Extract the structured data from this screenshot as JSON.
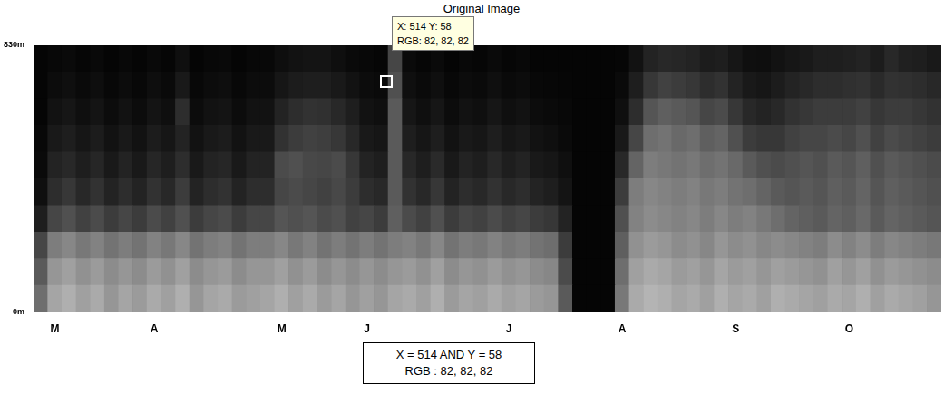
{
  "chart_data": {
    "type": "heatmap",
    "title": "Original Image",
    "categories": [
      null,
      "M",
      null,
      null,
      null,
      null,
      null,
      null,
      "A",
      null,
      null,
      null,
      null,
      null,
      null,
      null,
      null,
      "M",
      null,
      null,
      null,
      null,
      null,
      "J",
      null,
      null,
      null,
      null,
      null,
      null,
      null,
      null,
      null,
      "J",
      null,
      null,
      null,
      null,
      null,
      null,
      null,
      "A",
      null,
      null,
      null,
      null,
      null,
      null,
      null,
      "S",
      null,
      null,
      null,
      null,
      null,
      null,
      null,
      "O",
      null,
      null,
      null,
      null,
      null,
      null
    ],
    "ylim": [
      0,
      830
    ],
    "yticks": [
      {
        "value": 0,
        "label": "0m"
      },
      {
        "value": 830,
        "label": "830m"
      }
    ],
    "grid": false,
    "legend": false,
    "cells": [
      [
        110,
        165,
        175,
        160,
        170,
        150,
        165,
        155,
        170,
        160,
        175,
        150,
        165,
        170,
        155,
        160,
        165,
        175,
        160,
        170,
        155,
        165,
        150,
        160,
        150,
        165,
        170,
        160,
        175,
        155,
        165,
        160,
        170,
        160,
        165,
        155,
        150,
        90,
        5,
        5,
        5,
        120,
        170,
        180,
        175,
        165,
        170,
        160,
        175,
        165,
        170,
        160,
        175,
        170,
        165,
        160,
        170,
        165,
        175,
        160,
        170,
        165,
        160,
        150
      ],
      [
        90,
        150,
        160,
        145,
        155,
        140,
        150,
        140,
        155,
        145,
        160,
        140,
        150,
        155,
        140,
        150,
        150,
        160,
        145,
        155,
        140,
        150,
        140,
        150,
        140,
        150,
        155,
        145,
        160,
        140,
        150,
        145,
        155,
        145,
        150,
        140,
        135,
        75,
        5,
        5,
        5,
        110,
        160,
        170,
        165,
        155,
        160,
        150,
        165,
        155,
        160,
        150,
        160,
        155,
        150,
        145,
        160,
        150,
        160,
        145,
        155,
        150,
        145,
        140
      ],
      [
        70,
        125,
        135,
        120,
        130,
        115,
        125,
        115,
        130,
        120,
        135,
        115,
        125,
        130,
        115,
        125,
        125,
        135,
        120,
        130,
        115,
        125,
        115,
        125,
        115,
        125,
        130,
        120,
        135,
        115,
        125,
        120,
        130,
        120,
        125,
        115,
        110,
        60,
        5,
        5,
        5,
        95,
        145,
        155,
        150,
        140,
        145,
        135,
        150,
        140,
        145,
        135,
        140,
        135,
        130,
        125,
        140,
        130,
        140,
        125,
        135,
        130,
        125,
        120
      ],
      [
        30,
        70,
        80,
        65,
        75,
        60,
        70,
        60,
        75,
        65,
        80,
        60,
        70,
        75,
        60,
        70,
        70,
        85,
        80,
        85,
        75,
        80,
        65,
        70,
        60,
        95,
        75,
        65,
        80,
        60,
        70,
        65,
        75,
        65,
        70,
        60,
        55,
        35,
        5,
        5,
        5,
        80,
        130,
        140,
        135,
        130,
        135,
        125,
        135,
        125,
        130,
        120,
        110,
        100,
        95,
        90,
        100,
        95,
        105,
        90,
        100,
        95,
        90,
        85
      ],
      [
        15,
        45,
        55,
        40,
        50,
        35,
        45,
        35,
        50,
        40,
        60,
        35,
        45,
        50,
        35,
        45,
        45,
        70,
        75,
        70,
        65,
        72,
        60,
        45,
        40,
        90,
        50,
        40,
        55,
        35,
        45,
        40,
        50,
        40,
        45,
        35,
        30,
        20,
        5,
        5,
        5,
        60,
        125,
        135,
        130,
        125,
        130,
        120,
        125,
        115,
        110,
        100,
        90,
        85,
        90,
        85,
        95,
        90,
        100,
        85,
        95,
        90,
        85,
        80
      ],
      [
        10,
        35,
        40,
        30,
        38,
        25,
        35,
        25,
        38,
        30,
        45,
        25,
        35,
        38,
        25,
        35,
        35,
        75,
        80,
        72,
        70,
        75,
        55,
        35,
        30,
        90,
        40,
        30,
        42,
        25,
        35,
        30,
        40,
        30,
        35,
        25,
        22,
        15,
        5,
        5,
        5,
        40,
        100,
        125,
        120,
        115,
        120,
        110,
        115,
        105,
        90,
        80,
        75,
        80,
        85,
        80,
        90,
        85,
        95,
        80,
        90,
        85,
        80,
        75
      ],
      [
        8,
        25,
        30,
        22,
        28,
        18,
        25,
        18,
        28,
        22,
        35,
        18,
        25,
        28,
        18,
        25,
        25,
        50,
        60,
        65,
        62,
        55,
        40,
        25,
        22,
        90,
        30,
        22,
        30,
        18,
        25,
        22,
        30,
        22,
        25,
        18,
        15,
        10,
        5,
        5,
        5,
        25,
        70,
        110,
        115,
        105,
        110,
        95,
        100,
        80,
        60,
        55,
        55,
        65,
        70,
        70,
        75,
        70,
        80,
        65,
        75,
        70,
        65,
        60
      ],
      [
        5,
        18,
        22,
        15,
        20,
        12,
        18,
        12,
        20,
        15,
        45,
        12,
        18,
        20,
        12,
        18,
        18,
        35,
        45,
        50,
        48,
        40,
        30,
        18,
        15,
        90,
        22,
        15,
        22,
        12,
        18,
        15,
        22,
        15,
        18,
        12,
        10,
        8,
        5,
        5,
        5,
        15,
        45,
        85,
        95,
        90,
        85,
        70,
        75,
        55,
        40,
        35,
        40,
        50,
        55,
        60,
        60,
        60,
        65,
        55,
        60,
        60,
        55,
        50
      ],
      [
        5,
        12,
        15,
        10,
        14,
        8,
        12,
        8,
        14,
        10,
        25,
        8,
        12,
        14,
        8,
        12,
        12,
        22,
        28,
        30,
        30,
        25,
        18,
        12,
        10,
        80,
        15,
        10,
        15,
        8,
        12,
        10,
        15,
        10,
        12,
        8,
        7,
        6,
        5,
        5,
        5,
        10,
        30,
        55,
        65,
        60,
        55,
        45,
        50,
        35,
        25,
        22,
        28,
        35,
        40,
        45,
        45,
        48,
        50,
        42,
        50,
        48,
        45,
        40
      ],
      [
        5,
        8,
        10,
        6,
        9,
        5,
        8,
        5,
        9,
        6,
        15,
        5,
        8,
        9,
        5,
        8,
        8,
        14,
        18,
        20,
        20,
        15,
        10,
        8,
        6,
        70,
        10,
        6,
        10,
        5,
        8,
        6,
        10,
        6,
        8,
        5,
        5,
        5,
        5,
        5,
        5,
        6,
        18,
        35,
        40,
        38,
        35,
        28,
        30,
        22,
        15,
        14,
        18,
        22,
        25,
        30,
        30,
        32,
        35,
        28,
        40,
        32,
        30,
        25
      ]
    ],
    "annotations": [
      {
        "lines": [
          "X: 514 Y: 58",
          "RGB: 82, 82, 82"
        ]
      },
      {
        "lines": [
          "X = 514 AND Y = 58",
          "RGB : 82, 82, 82"
        ]
      }
    ]
  }
}
